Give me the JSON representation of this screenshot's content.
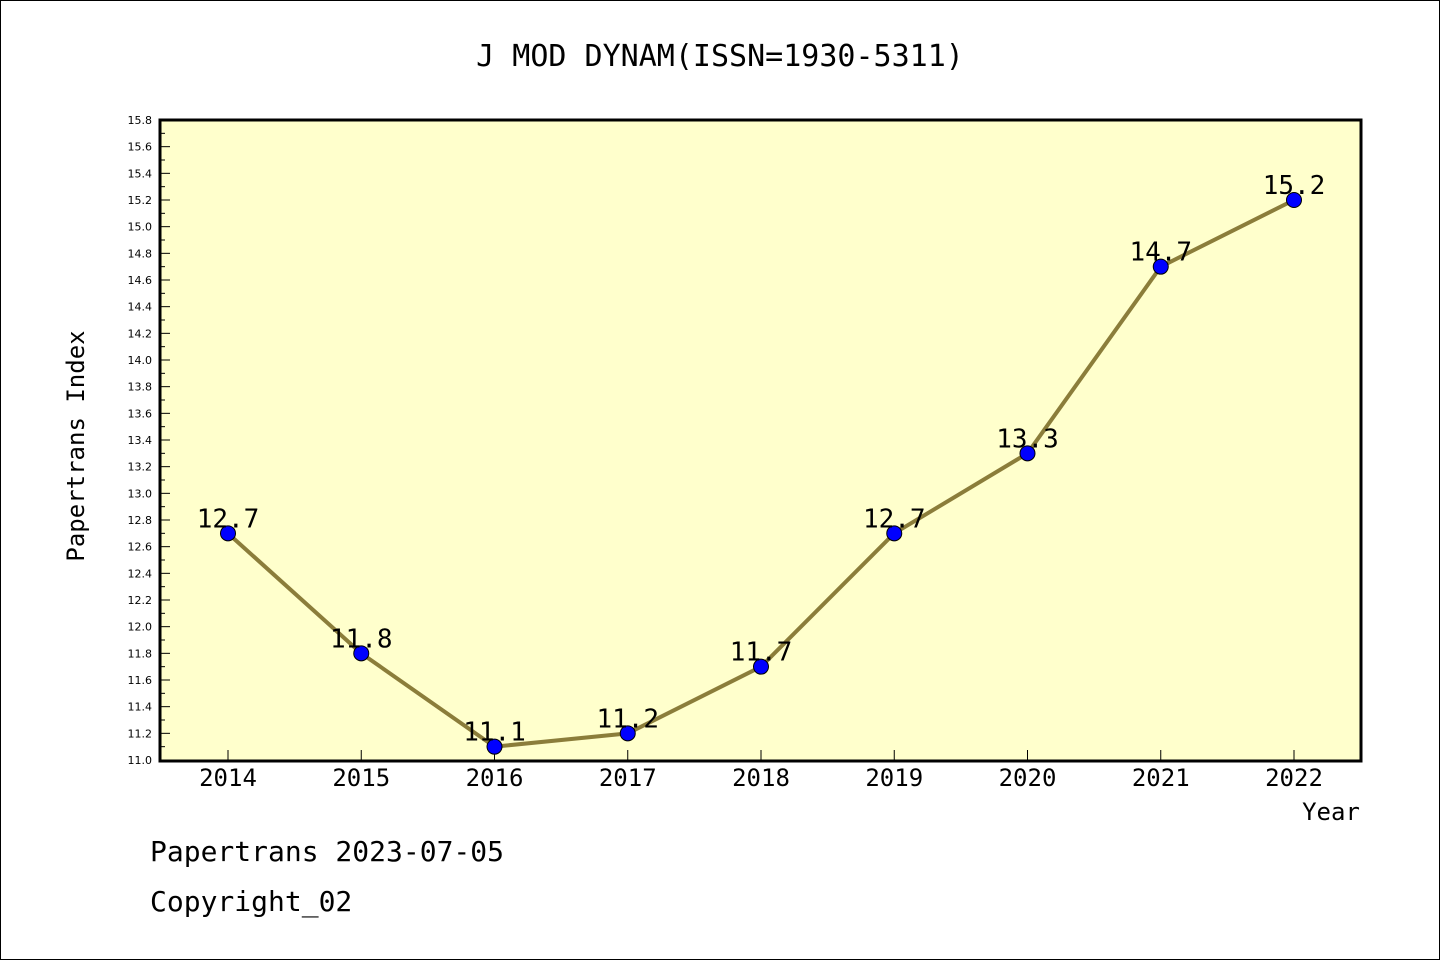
{
  "chart_data": {
    "type": "line",
    "title": "J MOD DYNAM(ISSN=1930-5311)",
    "xlabel": "Year",
    "ylabel": "Papertrans Index",
    "categories": [
      "2014",
      "2015",
      "2016",
      "2017",
      "2018",
      "2019",
      "2020",
      "2021",
      "2022"
    ],
    "series": [
      {
        "values": [
          12.7,
          11.8,
          11.1,
          11.2,
          11.7,
          12.7,
          13.3,
          14.7,
          15.2
        ]
      }
    ],
    "data_labels": [
      "12.7",
      "11.8",
      "11.1",
      "11.2",
      "11.7",
      "12.7",
      "13.3",
      "14.7",
      "15.2"
    ],
    "ylim": [
      11.0,
      15.8
    ],
    "yticks": [
      "11.0",
      "11.2",
      "11.4",
      "11.6",
      "11.8",
      "12.0",
      "12.2",
      "12.4",
      "12.6",
      "12.8",
      "13.0",
      "13.2",
      "13.4",
      "13.6",
      "13.8",
      "14.0",
      "14.2",
      "14.4",
      "14.6",
      "14.8",
      "15.0",
      "15.2",
      "15.4",
      "15.6",
      "15.8"
    ],
    "grid": false,
    "colors": {
      "plot_background": "#ffffcc",
      "line": "#8b7d3a",
      "marker": "#0000ff"
    }
  },
  "footer": {
    "line1": "Papertrans 2023-07-05",
    "line2": "Copyright_02"
  }
}
